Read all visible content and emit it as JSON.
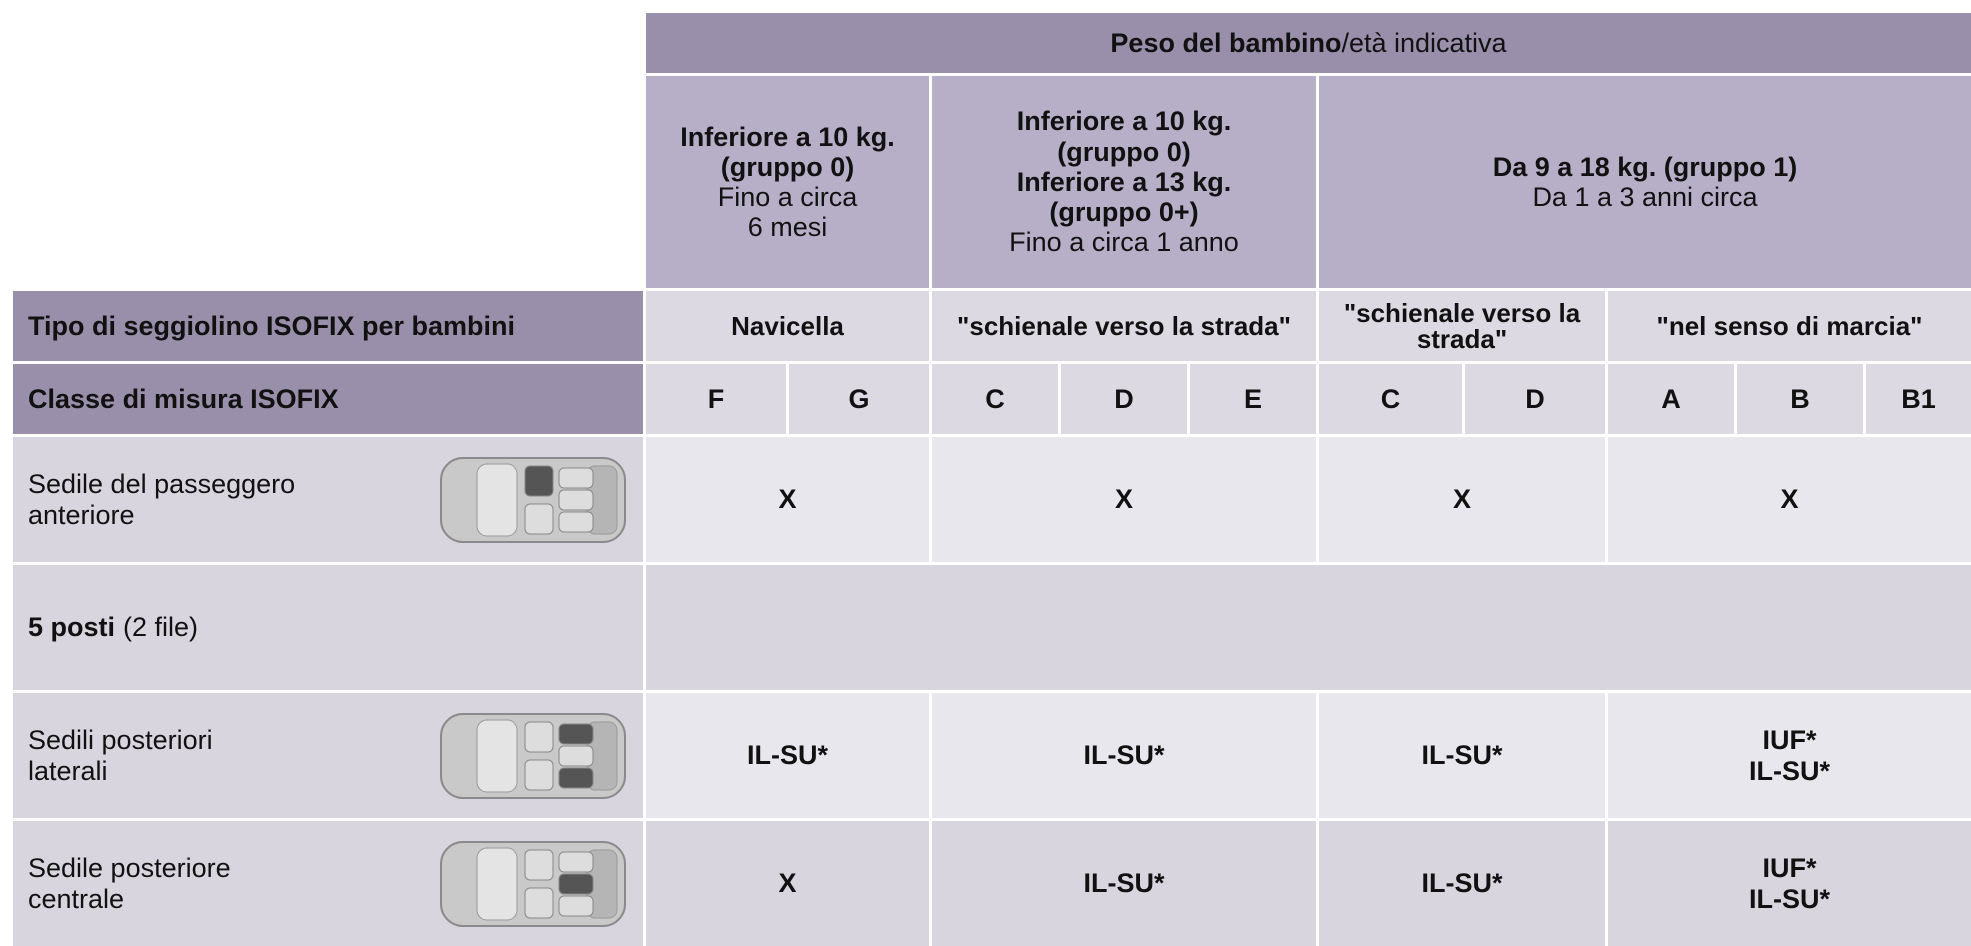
{
  "header": {
    "title_bold": "Peso del bambino",
    "title_rest": "/età indicativa"
  },
  "groups": [
    {
      "bold": [
        "Inferiore a 10 kg.",
        "(gruppo 0)"
      ],
      "normal": [
        "Fino a circa",
        "6 mesi"
      ]
    },
    {
      "bold": [
        "Inferiore a 10 kg.",
        "(gruppo 0)",
        "Inferiore a 13 kg.",
        "(gruppo 0+)"
      ],
      "normal": [
        "Fino a circa 1 anno"
      ]
    },
    {
      "bold": [
        "Da 9 a 18 kg. (gruppo 1)"
      ],
      "normal": [
        "Da 1 a 3 anni circa"
      ]
    }
  ],
  "seat_type": {
    "label": "Tipo di seggiolino ISOFIX per bambini",
    "values": [
      "Navicella",
      "\"schienale verso la strada\"",
      "\"schienale verso la strada\"",
      "\"nel senso di marcia\""
    ]
  },
  "size_class": {
    "label": "Classe di misura ISOFIX",
    "values": [
      "F",
      "G",
      "C",
      "D",
      "E",
      "C",
      "D",
      "A",
      "B",
      "B1"
    ]
  },
  "rows": [
    {
      "label": [
        "Sedile del passeggero",
        "anteriore"
      ],
      "values": [
        [
          "X"
        ],
        [
          "X"
        ],
        [
          "X"
        ],
        [
          "X"
        ]
      ]
    },
    {
      "label_bold": "5 posti",
      "label_rest": "(2 file)"
    },
    {
      "label": [
        "Sedili posteriori",
        "laterali"
      ],
      "values": [
        [
          "IL-SU*"
        ],
        [
          "IL-SU*"
        ],
        [
          "IL-SU*"
        ],
        [
          "IUF*",
          "IL-SU*"
        ]
      ]
    },
    {
      "label": [
        "Sedile posteriore",
        "centrale"
      ],
      "values": [
        [
          "X"
        ],
        [
          "IL-SU*"
        ],
        [
          "IL-SU*"
        ],
        [
          "IUF*",
          "IL-SU*"
        ]
      ]
    }
  ]
}
